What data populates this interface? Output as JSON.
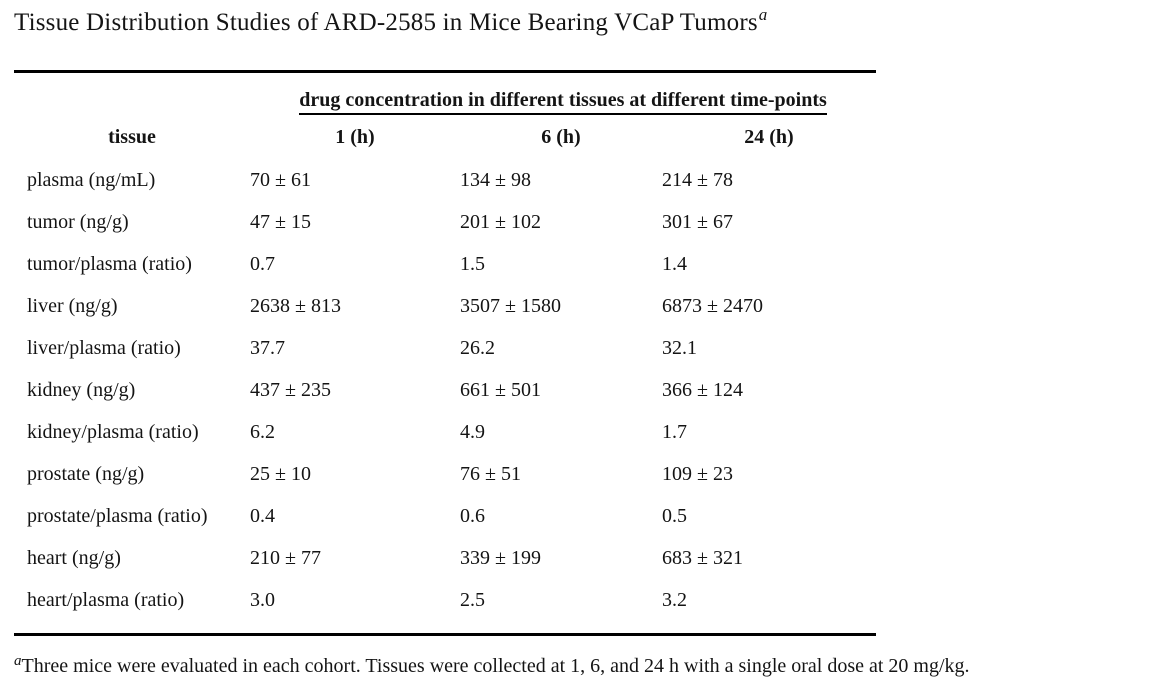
{
  "page": {
    "title": "Tissue Distribution Studies of ARD-2585 in Mice Bearing VCaP Tumors",
    "title_superscript": "a"
  },
  "table": {
    "span_header": "drug concentration in different tissues at different time-points",
    "columns": [
      "tissue",
      "1 (h)",
      "6 (h)",
      "24 (h)"
    ],
    "rows": [
      {
        "tissue": "plasma (ng/mL)",
        "values": [
          "70 ± 61",
          "134 ± 98",
          "214 ± 78"
        ]
      },
      {
        "tissue": "tumor (ng/g)",
        "values": [
          "47 ± 15",
          "201 ± 102",
          "301 ± 67"
        ]
      },
      {
        "tissue": "tumor/plasma (ratio)",
        "values": [
          "0.7",
          "1.5",
          "1.4"
        ]
      },
      {
        "tissue": "liver (ng/g)",
        "values": [
          "2638 ± 813",
          "3507 ± 1580",
          "6873 ± 2470"
        ]
      },
      {
        "tissue": "liver/plasma (ratio)",
        "values": [
          "37.7",
          "26.2",
          "32.1"
        ]
      },
      {
        "tissue": "kidney (ng/g)",
        "values": [
          "437 ± 235",
          "661 ± 501",
          "366 ± 124"
        ]
      },
      {
        "tissue": "kidney/plasma (ratio)",
        "values": [
          "6.2",
          "4.9",
          "1.7"
        ]
      },
      {
        "tissue": "prostate (ng/g)",
        "values": [
          "25 ± 10",
          "76 ± 51",
          "109 ± 23"
        ]
      },
      {
        "tissue": "prostate/plasma (ratio)",
        "values": [
          "0.4",
          "0.6",
          "0.5"
        ]
      },
      {
        "tissue": "heart (ng/g)",
        "values": [
          "210 ± 77",
          "339 ± 199",
          "683 ± 321"
        ]
      },
      {
        "tissue": "heart/plasma (ratio)",
        "values": [
          "3.0",
          "2.5",
          "3.2"
        ]
      }
    ]
  },
  "footnote": {
    "marker": "a",
    "text": "Three mice were evaluated in each cohort. Tissues were collected at 1, 6, and 24 h with a single oral dose at 20 mg/kg."
  },
  "colors": {
    "background": "#ffffff",
    "text": "#141414",
    "rule": "#000000"
  },
  "chart_data": {
    "type": "table",
    "title": "Tissue Distribution Studies of ARD-2585 in Mice Bearing VCaP Tumors",
    "group_header": "drug concentration in different tissues at different time-points",
    "columns": [
      "tissue",
      "1 (h)",
      "6 (h)",
      "24 (h)"
    ],
    "rows": [
      [
        "plasma (ng/mL)",
        "70 ± 61",
        "134 ± 98",
        "214 ± 78"
      ],
      [
        "tumor (ng/g)",
        "47 ± 15",
        "201 ± 102",
        "301 ± 67"
      ],
      [
        "tumor/plasma (ratio)",
        "0.7",
        "1.5",
        "1.4"
      ],
      [
        "liver (ng/g)",
        "2638 ± 813",
        "3507 ± 1580",
        "6873 ± 2470"
      ],
      [
        "liver/plasma (ratio)",
        "37.7",
        "26.2",
        "32.1"
      ],
      [
        "kidney (ng/g)",
        "437 ± 235",
        "661 ± 501",
        "366 ± 124"
      ],
      [
        "kidney/plasma (ratio)",
        "6.2",
        "4.9",
        "1.7"
      ],
      [
        "prostate (ng/g)",
        "25 ± 10",
        "76 ± 51",
        "109 ± 23"
      ],
      [
        "prostate/plasma (ratio)",
        "0.4",
        "0.6",
        "0.5"
      ],
      [
        "heart (ng/g)",
        "210 ± 77",
        "339 ± 199",
        "683 ± 321"
      ],
      [
        "heart/plasma (ratio)",
        "3.0",
        "2.5",
        "3.2"
      ]
    ],
    "footnote": "a: Three mice were evaluated in each cohort. Tissues were collected at 1, 6, and 24 h with a single oral dose at 20 mg/kg."
  }
}
